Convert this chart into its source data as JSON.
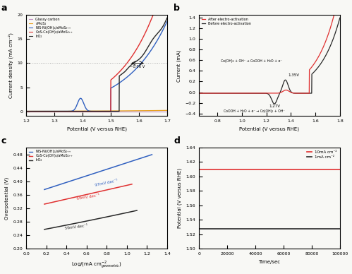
{
  "panel_a": {
    "title": "a",
    "xlabel": "Potential (V versus RHE)",
    "ylabel": "Current density (mA cm⁻²)",
    "xlim": [
      1.2,
      1.7
    ],
    "ylim": [
      -1,
      20
    ],
    "yticks": [
      0,
      5,
      10,
      15,
      20
    ],
    "hline_y": 10,
    "hline_color": "#a0a0a0",
    "annotation": "~0.06 V",
    "bg_color": "#f8f8f5",
    "lines": {
      "glassy_carbon": {
        "color": "#c090c0",
        "label": "Glassy carbon"
      },
      "aMoS2": {
        "color": "#e8a020",
        "label": "aMoS₂"
      },
      "NiS": {
        "color": "#3060c0",
        "label": "NiS-Ni(OH)₂/aMoS₂₊₊"
      },
      "CoS": {
        "color": "#e03030",
        "label": "CoS-Co(OH)₂/aMoS₂₊₊"
      },
      "IrO2": {
        "color": "#282828",
        "label": "IrO₂"
      }
    }
  },
  "panel_b": {
    "title": "b",
    "xlabel": "Potential (V versus RHE)",
    "ylabel": "Current (mA)",
    "xlim": [
      0.65,
      1.8
    ],
    "ylim": [
      -0.45,
      1.45
    ],
    "yticks": [
      -0.4,
      -0.2,
      0.0,
      0.2,
      0.4,
      0.6,
      0.8,
      1.0,
      1.2,
      1.4
    ],
    "annotation1": "Co(OH)₂ + OH⁻ → CoOOH + H₂O + e⁻",
    "annotation2": "1.35V",
    "annotation3": "1.27V",
    "annotation4": "CoOOH + H₂O + e⁻ → Co(OH)₂ + OH⁻",
    "bg_color": "#f8f8f5",
    "lines": {
      "after": {
        "color": "#e03030",
        "label": "After electro-activation"
      },
      "before": {
        "color": "#282828",
        "label": "Before electro-activation"
      }
    }
  },
  "panel_c": {
    "title": "c",
    "xlabel": "Log/(mA cm$^{-2}_{geometric}$)",
    "ylabel": "Overpotential (V)",
    "xlim": [
      0.0,
      1.4
    ],
    "ylim": [
      0.2,
      0.5
    ],
    "yticks": [
      0.2,
      0.24,
      0.28,
      0.32,
      0.36,
      0.4,
      0.44,
      0.48
    ],
    "bg_color": "#f8f8f5",
    "lines": {
      "NiS": {
        "color": "#3060c0",
        "label": "NiS-Ni(OH)₂/aMoS₂₊₊",
        "slope": 0.097,
        "x0": 0.18,
        "x1": 1.25,
        "y0": 0.358
      },
      "CoS": {
        "color": "#e03030",
        "label": "CoS-Co(OH)₂/aMoS₂₊₊",
        "slope": 0.068,
        "x0": 0.18,
        "x1": 1.05,
        "y0": 0.32
      },
      "IrO2": {
        "color": "#282828",
        "label": "IrO₂",
        "x0": 0.18,
        "x1": 1.1,
        "y0": 0.247
      }
    }
  },
  "panel_d": {
    "title": "d",
    "xlabel": "Time/sec",
    "ylabel": "Potential (V versus RHE)",
    "xlim": [
      0,
      100000
    ],
    "ylim": [
      1.5,
      1.64
    ],
    "yticks": [
      1.5,
      1.52,
      1.54,
      1.56,
      1.58,
      1.6,
      1.62,
      1.64
    ],
    "bg_color": "#f8f8f5",
    "lines": {
      "10mA": {
        "color": "#e03030",
        "label": "10mA cm⁻²",
        "value": 1.61
      },
      "1mA": {
        "color": "#282828",
        "label": "1mA cm⁻²",
        "value": 1.528
      }
    }
  }
}
